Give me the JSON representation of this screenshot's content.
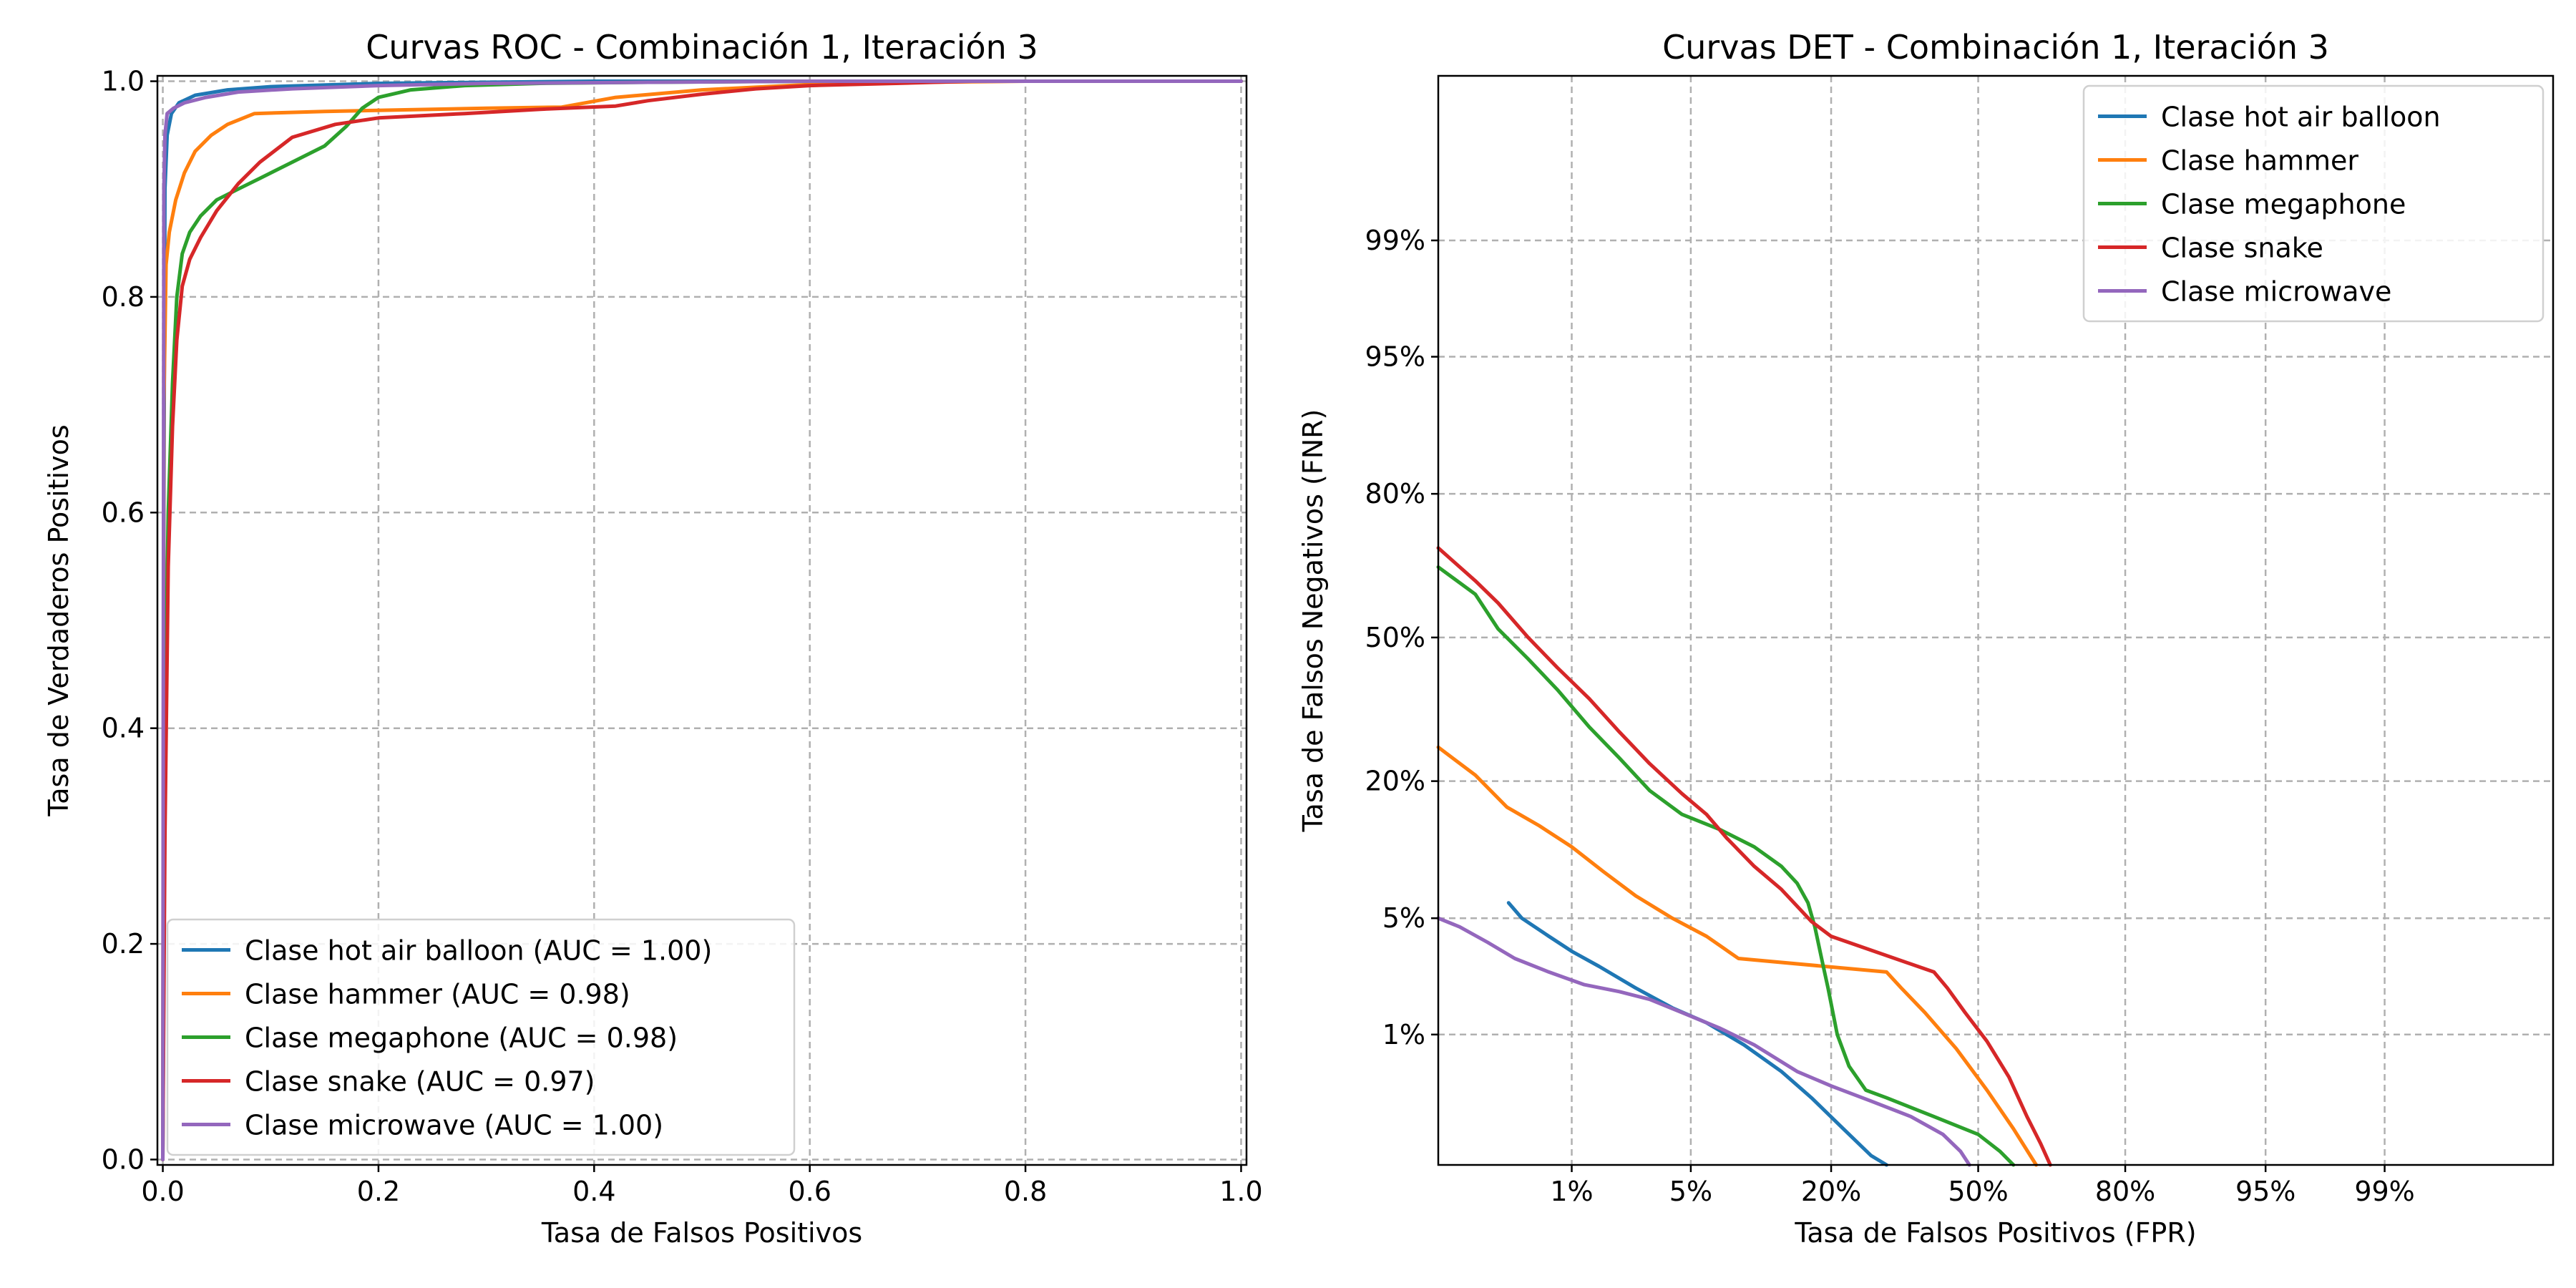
{
  "chart_data": [
    {
      "type": "line",
      "title": "Curvas ROC - Combinación 1, Iteración 3",
      "xlabel": "Tasa de Falsos Positivos",
      "ylabel": "Tasa de Verdaderos Positivos",
      "xlim": [
        -0.005,
        1.005
      ],
      "ylim": [
        -0.005,
        1.005
      ],
      "x_ticks": [
        0.0,
        0.2,
        0.4,
        0.6,
        0.8,
        1.0
      ],
      "x_tick_labels": [
        "0.0",
        "0.2",
        "0.4",
        "0.6",
        "0.8",
        "1.0"
      ],
      "y_ticks": [
        0.0,
        0.2,
        0.4,
        0.6,
        0.8,
        1.0
      ],
      "y_tick_labels": [
        "0.0",
        "0.2",
        "0.4",
        "0.6",
        "0.8",
        "1.0"
      ],
      "grid": true,
      "legend_position": "lower-left",
      "series": [
        {
          "name": "Clase hot air balloon (AUC = 1.00)",
          "color": "#1f77b4",
          "points": [
            [
              0,
              0
            ],
            [
              0.001,
              0.6
            ],
            [
              0.002,
              0.9
            ],
            [
              0.004,
              0.95
            ],
            [
              0.008,
              0.97
            ],
            [
              0.015,
              0.98
            ],
            [
              0.03,
              0.987
            ],
            [
              0.06,
              0.992
            ],
            [
              0.1,
              0.995
            ],
            [
              0.2,
              0.998
            ],
            [
              0.3,
              0.999
            ],
            [
              0.4,
              1.0
            ],
            [
              0.5,
              1.0
            ],
            [
              1.0,
              1.0
            ]
          ]
        },
        {
          "name": "Clase hammer (AUC = 0.98)",
          "color": "#ff7f0e",
          "points": [
            [
              0,
              0
            ],
            [
              0.001,
              0.7
            ],
            [
              0.003,
              0.83
            ],
            [
              0.006,
              0.86
            ],
            [
              0.012,
              0.89
            ],
            [
              0.02,
              0.915
            ],
            [
              0.03,
              0.935
            ],
            [
              0.045,
              0.95
            ],
            [
              0.06,
              0.96
            ],
            [
              0.085,
              0.97
            ],
            [
              0.15,
              0.972
            ],
            [
              0.3,
              0.975
            ],
            [
              0.37,
              0.976
            ],
            [
              0.42,
              0.985
            ],
            [
              0.5,
              0.992
            ],
            [
              0.6,
              0.997
            ],
            [
              0.7,
              0.999
            ],
            [
              0.8,
              1.0
            ],
            [
              1.0,
              1.0
            ]
          ]
        },
        {
          "name": "Clase megaphone (AUC = 0.98)",
          "color": "#2ca02c",
          "points": [
            [
              0,
              0
            ],
            [
              0.002,
              0.4
            ],
            [
              0.005,
              0.6
            ],
            [
              0.009,
              0.72
            ],
            [
              0.013,
              0.8
            ],
            [
              0.018,
              0.84
            ],
            [
              0.025,
              0.86
            ],
            [
              0.035,
              0.875
            ],
            [
              0.05,
              0.89
            ],
            [
              0.07,
              0.9
            ],
            [
              0.09,
              0.91
            ],
            [
              0.12,
              0.925
            ],
            [
              0.15,
              0.94
            ],
            [
              0.17,
              0.958
            ],
            [
              0.185,
              0.975
            ],
            [
              0.2,
              0.985
            ],
            [
              0.23,
              0.992
            ],
            [
              0.28,
              0.996
            ],
            [
              0.35,
              0.998
            ],
            [
              0.45,
              0.999
            ],
            [
              0.6,
              1.0
            ],
            [
              1.0,
              1.0
            ]
          ]
        },
        {
          "name": "Clase snake (AUC = 0.97)",
          "color": "#d62728",
          "points": [
            [
              0,
              0
            ],
            [
              0.002,
              0.3
            ],
            [
              0.005,
              0.55
            ],
            [
              0.009,
              0.68
            ],
            [
              0.013,
              0.76
            ],
            [
              0.018,
              0.81
            ],
            [
              0.025,
              0.835
            ],
            [
              0.035,
              0.855
            ],
            [
              0.05,
              0.88
            ],
            [
              0.07,
              0.905
            ],
            [
              0.09,
              0.925
            ],
            [
              0.12,
              0.948
            ],
            [
              0.16,
              0.96
            ],
            [
              0.2,
              0.966
            ],
            [
              0.28,
              0.97
            ],
            [
              0.35,
              0.974
            ],
            [
              0.42,
              0.977
            ],
            [
              0.45,
              0.982
            ],
            [
              0.5,
              0.988
            ],
            [
              0.55,
              0.993
            ],
            [
              0.6,
              0.996
            ],
            [
              0.68,
              0.998
            ],
            [
              0.75,
              1.0
            ],
            [
              1.0,
              1.0
            ]
          ]
        },
        {
          "name": "Clase microwave (AUC = 1.00)",
          "color": "#9467bd",
          "points": [
            [
              0,
              0
            ],
            [
              0.0005,
              0.5
            ],
            [
              0.001,
              0.9
            ],
            [
              0.002,
              0.95
            ],
            [
              0.004,
              0.97
            ],
            [
              0.01,
              0.975
            ],
            [
              0.02,
              0.98
            ],
            [
              0.04,
              0.985
            ],
            [
              0.07,
              0.99
            ],
            [
              0.12,
              0.993
            ],
            [
              0.2,
              0.996
            ],
            [
              0.3,
              0.998
            ],
            [
              0.45,
              0.999
            ],
            [
              0.6,
              1.0
            ],
            [
              1.0,
              1.0
            ]
          ]
        }
      ]
    },
    {
      "type": "line",
      "title": "Curvas DET - Combinación 1, Iteración 3",
      "xlabel": "Tasa de Falsos Positivos (FPR)",
      "ylabel": "Tasa de Falsos Negativos (FNR)",
      "scale": "normal-deviate (probit)",
      "xlim": [
        0.001,
        0.9995
      ],
      "ylim": [
        0.001,
        0.9995
      ],
      "x_ticks": [
        0.01,
        0.05,
        0.2,
        0.5,
        0.8,
        0.95,
        0.99
      ],
      "x_tick_labels": [
        "1%",
        "5%",
        "20%",
        "50%",
        "80%",
        "95%",
        "99%"
      ],
      "y_ticks": [
        0.01,
        0.05,
        0.2,
        0.5,
        0.8,
        0.95,
        0.99
      ],
      "y_tick_labels": [
        "1%",
        "5%",
        "20%",
        "50%",
        "80%",
        "95%",
        "99%"
      ],
      "grid": true,
      "legend_position": "top-right",
      "series": [
        {
          "name": "Clase hot air balloon",
          "color": "#1f77b4",
          "points": [
            [
              0.0036,
              0.06
            ],
            [
              0.0045,
              0.05
            ],
            [
              0.007,
              0.04
            ],
            [
              0.01,
              0.033
            ],
            [
              0.015,
              0.027
            ],
            [
              0.025,
              0.02
            ],
            [
              0.04,
              0.015
            ],
            [
              0.06,
              0.012
            ],
            [
              0.09,
              0.0085
            ],
            [
              0.13,
              0.0055
            ],
            [
              0.17,
              0.0035
            ],
            [
              0.22,
              0.002
            ],
            [
              0.27,
              0.0012
            ],
            [
              0.3,
              0.001
            ]
          ]
        },
        {
          "name": "Clase hammer",
          "color": "#ff7f0e",
          "points": [
            [
              0.001,
              0.26
            ],
            [
              0.002,
              0.21
            ],
            [
              0.0035,
              0.16
            ],
            [
              0.006,
              0.135
            ],
            [
              0.01,
              0.11
            ],
            [
              0.016,
              0.085
            ],
            [
              0.025,
              0.065
            ],
            [
              0.04,
              0.05
            ],
            [
              0.06,
              0.04
            ],
            [
              0.085,
              0.03
            ],
            [
              0.3,
              0.025
            ],
            [
              0.33,
              0.02
            ],
            [
              0.38,
              0.014
            ],
            [
              0.45,
              0.008
            ],
            [
              0.52,
              0.004
            ],
            [
              0.58,
              0.002
            ],
            [
              0.63,
              0.001
            ]
          ]
        },
        {
          "name": "Clase megaphone",
          "color": "#2ca02c",
          "points": [
            [
              0.001,
              0.66
            ],
            [
              0.002,
              0.6
            ],
            [
              0.003,
              0.52
            ],
            [
              0.005,
              0.45
            ],
            [
              0.008,
              0.38
            ],
            [
              0.013,
              0.3
            ],
            [
              0.02,
              0.24
            ],
            [
              0.03,
              0.185
            ],
            [
              0.045,
              0.15
            ],
            [
              0.07,
              0.13
            ],
            [
              0.1,
              0.11
            ],
            [
              0.13,
              0.09
            ],
            [
              0.15,
              0.075
            ],
            [
              0.165,
              0.06
            ],
            [
              0.175,
              0.045
            ],
            [
              0.185,
              0.03
            ],
            [
              0.195,
              0.02
            ],
            [
              0.21,
              0.01
            ],
            [
              0.23,
              0.006
            ],
            [
              0.26,
              0.004
            ],
            [
              0.3,
              0.0035
            ],
            [
              0.4,
              0.0025
            ],
            [
              0.5,
              0.0018
            ],
            [
              0.55,
              0.0013
            ],
            [
              0.58,
              0.001
            ]
          ]
        },
        {
          "name": "Clase snake",
          "color": "#d62728",
          "points": [
            [
              0.001,
              0.7
            ],
            [
              0.002,
              0.63
            ],
            [
              0.003,
              0.58
            ],
            [
              0.005,
              0.5
            ],
            [
              0.008,
              0.43
            ],
            [
              0.013,
              0.36
            ],
            [
              0.02,
              0.29
            ],
            [
              0.03,
              0.23
            ],
            [
              0.045,
              0.18
            ],
            [
              0.06,
              0.15
            ],
            [
              0.075,
              0.12
            ],
            [
              0.1,
              0.09
            ],
            [
              0.13,
              0.07
            ],
            [
              0.17,
              0.048
            ],
            [
              0.2,
              0.04
            ],
            [
              0.4,
              0.025
            ],
            [
              0.43,
              0.02
            ],
            [
              0.47,
              0.014
            ],
            [
              0.52,
              0.009
            ],
            [
              0.57,
              0.005
            ],
            [
              0.61,
              0.0025
            ],
            [
              0.64,
              0.0015
            ],
            [
              0.66,
              0.001
            ]
          ]
        },
        {
          "name": "Clase microwave",
          "color": "#9467bd",
          "points": [
            [
              0.001,
              0.05
            ],
            [
              0.0015,
              0.045
            ],
            [
              0.0025,
              0.037
            ],
            [
              0.004,
              0.03
            ],
            [
              0.007,
              0.025
            ],
            [
              0.012,
              0.021
            ],
            [
              0.02,
              0.019
            ],
            [
              0.03,
              0.017
            ],
            [
              0.045,
              0.014
            ],
            [
              0.07,
              0.011
            ],
            [
              0.1,
              0.0085
            ],
            [
              0.15,
              0.0055
            ],
            [
              0.2,
              0.0043
            ],
            [
              0.27,
              0.0033
            ],
            [
              0.35,
              0.0025
            ],
            [
              0.42,
              0.0018
            ],
            [
              0.46,
              0.0013
            ],
            [
              0.48,
              0.001
            ]
          ]
        }
      ]
    }
  ]
}
